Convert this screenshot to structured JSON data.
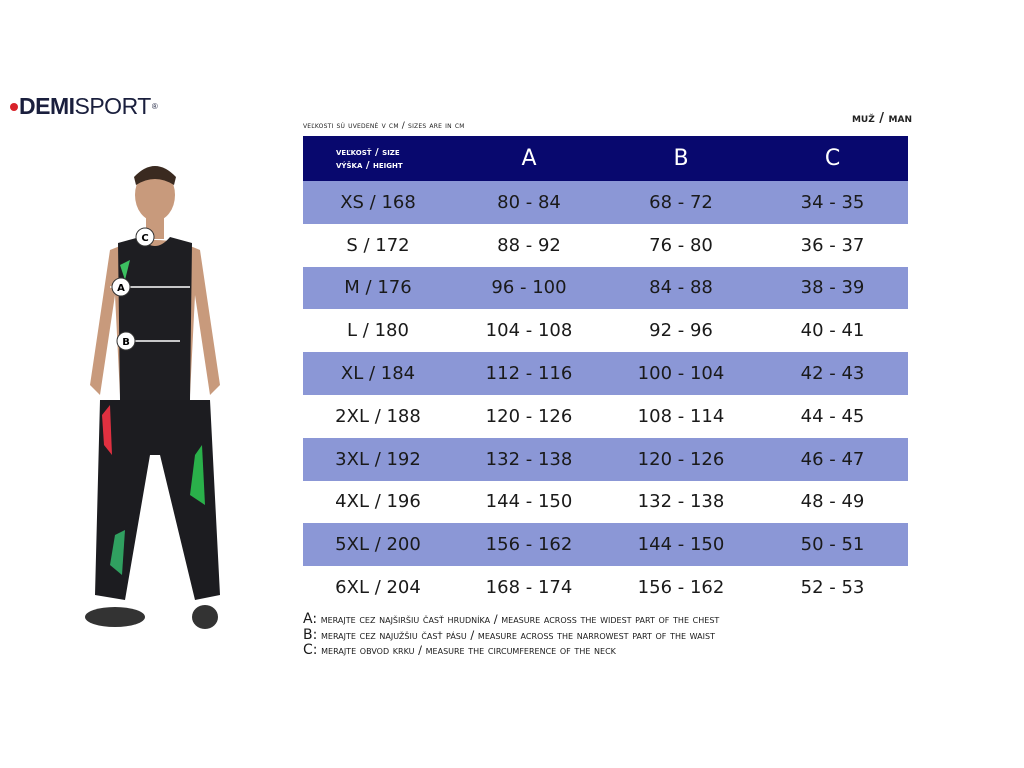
{
  "brand": {
    "bold": "DEMI",
    "light": "SPORT",
    "mark": "®",
    "accent": "#d8222a"
  },
  "note": "veľkosti sú uvedené v cm / sizes are in cm",
  "gender": "muž / man",
  "table": {
    "header": {
      "size_line1": "veľkosť / size",
      "size_line2": "výška / height",
      "cols": [
        "A",
        "B",
        "C"
      ]
    },
    "rows": [
      [
        "XS / 168",
        "80 - 84",
        "68 - 72",
        "34 - 35"
      ],
      [
        "S / 172",
        "88 - 92",
        "76 - 80",
        "36 - 37"
      ],
      [
        "M / 176",
        "96 - 100",
        "84 - 88",
        "38 - 39"
      ],
      [
        "L / 180",
        "104 - 108",
        "92 - 96",
        "40 - 41"
      ],
      [
        "XL / 184",
        "112 - 116",
        "100 - 104",
        "42 - 43"
      ],
      [
        "2XL / 188",
        "120 - 126",
        "108 - 114",
        "44 - 45"
      ],
      [
        "3XL / 192",
        "132 - 138",
        "120 - 126",
        "46 - 47"
      ],
      [
        "4XL / 196",
        "144 - 150",
        "132 - 138",
        "48 - 49"
      ],
      [
        "5XL / 200",
        "156 - 162",
        "144 - 150",
        "50 - 51"
      ],
      [
        "6XL / 204",
        "168 - 174",
        "156 - 162",
        "52 - 53"
      ]
    ],
    "colors": {
      "header": "#08086e",
      "stripe": "#8b97d6"
    }
  },
  "figure": {
    "labels": [
      "C",
      "A",
      "B"
    ]
  },
  "legend": [
    "A: merajte cez najširšiu časť hrudníka / measure across the widest part of the chest",
    "B: merajte cez najužšiu časť pásu / measure across the narrowest part of the waist",
    "C: merajte obvod krku / measure the circumference of the neck"
  ]
}
